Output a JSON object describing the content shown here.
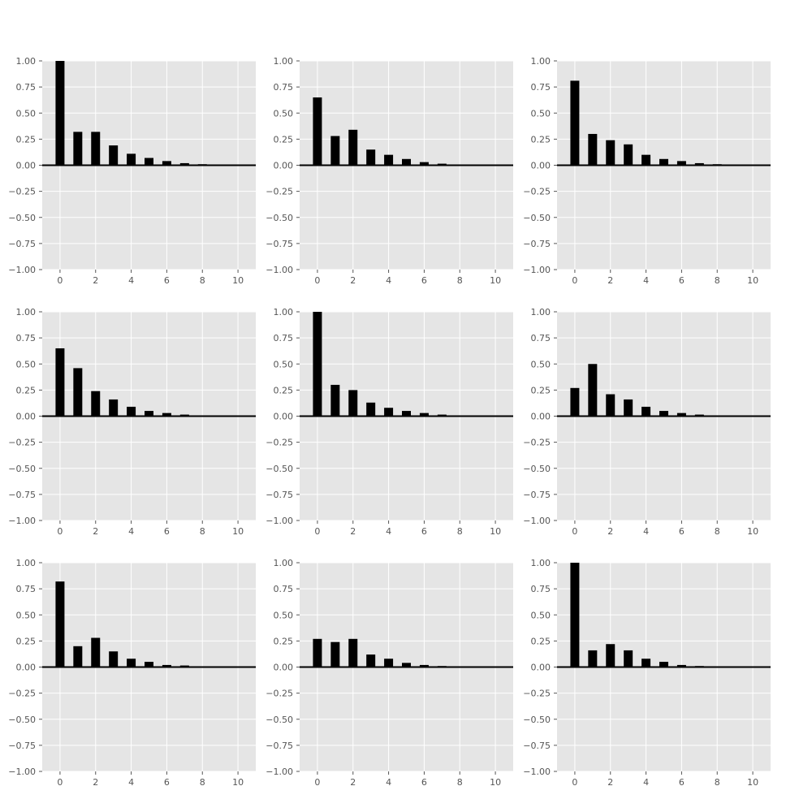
{
  "chart_data": [
    {
      "type": "bar",
      "x": [
        0,
        1,
        2,
        3,
        4,
        5,
        6,
        7,
        8,
        9,
        10
      ],
      "values": [
        1.0,
        0.32,
        0.32,
        0.19,
        0.11,
        0.07,
        0.04,
        0.02,
        0.01,
        0.005,
        0.0
      ],
      "xlim": [
        -1,
        11
      ],
      "ylim": [
        -1,
        1
      ],
      "xticks": [
        "0",
        "2",
        "4",
        "6",
        "8",
        "10"
      ],
      "yticks": [
        "1.00",
        "0.75",
        "0.50",
        "0.25",
        "0.00",
        "−0.25",
        "−0.50",
        "−0.75",
        "−1.00"
      ],
      "grid": true,
      "bar_color": "#000000",
      "background": "#e5e5e5"
    },
    {
      "type": "bar",
      "x": [
        0,
        1,
        2,
        3,
        4,
        5,
        6,
        7,
        8,
        9,
        10
      ],
      "values": [
        0.65,
        0.28,
        0.34,
        0.15,
        0.1,
        0.06,
        0.03,
        0.015,
        0.005,
        0.0,
        0.0
      ],
      "xlim": [
        -1,
        11
      ],
      "ylim": [
        -1,
        1
      ],
      "xticks": [
        "0",
        "2",
        "4",
        "6",
        "8",
        "10"
      ],
      "yticks": [
        "1.00",
        "0.75",
        "0.50",
        "0.25",
        "0.00",
        "−0.25",
        "−0.50",
        "−0.75",
        "−1.00"
      ],
      "grid": true,
      "bar_color": "#000000",
      "background": "#e5e5e5"
    },
    {
      "type": "bar",
      "x": [
        0,
        1,
        2,
        3,
        4,
        5,
        6,
        7,
        8,
        9,
        10
      ],
      "values": [
        0.81,
        0.3,
        0.24,
        0.2,
        0.1,
        0.06,
        0.04,
        0.02,
        0.01,
        0.005,
        0.0
      ],
      "xlim": [
        -1,
        11
      ],
      "ylim": [
        -1,
        1
      ],
      "xticks": [
        "0",
        "2",
        "4",
        "6",
        "8",
        "10"
      ],
      "yticks": [
        "1.00",
        "0.75",
        "0.50",
        "0.25",
        "0.00",
        "−0.25",
        "−0.50",
        "−0.75",
        "−1.00"
      ],
      "grid": true,
      "bar_color": "#000000",
      "background": "#e5e5e5"
    },
    {
      "type": "bar",
      "x": [
        0,
        1,
        2,
        3,
        4,
        5,
        6,
        7,
        8,
        9,
        10
      ],
      "values": [
        0.65,
        0.46,
        0.24,
        0.16,
        0.09,
        0.05,
        0.03,
        0.015,
        0.005,
        0.003,
        0.0
      ],
      "xlim": [
        -1,
        11
      ],
      "ylim": [
        -1,
        1
      ],
      "xticks": [
        "0",
        "2",
        "4",
        "6",
        "8",
        "10"
      ],
      "yticks": [
        "1.00",
        "0.75",
        "0.50",
        "0.25",
        "0.00",
        "−0.25",
        "−0.50",
        "−0.75",
        "−1.00"
      ],
      "grid": true,
      "bar_color": "#000000",
      "background": "#e5e5e5"
    },
    {
      "type": "bar",
      "x": [
        0,
        1,
        2,
        3,
        4,
        5,
        6,
        7,
        8,
        9,
        10
      ],
      "values": [
        1.0,
        0.3,
        0.25,
        0.13,
        0.08,
        0.05,
        0.03,
        0.015,
        0.005,
        0.0,
        0.0
      ],
      "xlim": [
        -1,
        11
      ],
      "ylim": [
        -1,
        1
      ],
      "xticks": [
        "0",
        "2",
        "4",
        "6",
        "8",
        "10"
      ],
      "yticks": [
        "1.00",
        "0.75",
        "0.50",
        "0.25",
        "0.00",
        "−0.25",
        "−0.50",
        "−0.75",
        "−1.00"
      ],
      "grid": true,
      "bar_color": "#000000",
      "background": "#e5e5e5"
    },
    {
      "type": "bar",
      "x": [
        0,
        1,
        2,
        3,
        4,
        5,
        6,
        7,
        8,
        9,
        10
      ],
      "values": [
        0.27,
        0.5,
        0.21,
        0.16,
        0.09,
        0.05,
        0.03,
        0.015,
        0.005,
        0.003,
        0.0
      ],
      "xlim": [
        -1,
        11
      ],
      "ylim": [
        -1,
        1
      ],
      "xticks": [
        "0",
        "2",
        "4",
        "6",
        "8",
        "10"
      ],
      "yticks": [
        "1.00",
        "0.75",
        "0.50",
        "0.25",
        "0.00",
        "−0.25",
        "−0.50",
        "−0.75",
        "−1.00"
      ],
      "grid": true,
      "bar_color": "#000000",
      "background": "#e5e5e5"
    },
    {
      "type": "bar",
      "x": [
        0,
        1,
        2,
        3,
        4,
        5,
        6,
        7,
        8,
        9,
        10
      ],
      "values": [
        0.82,
        0.2,
        0.28,
        0.15,
        0.08,
        0.05,
        0.02,
        0.015,
        0.0,
        0.0,
        0.0
      ],
      "xlim": [
        -1,
        11
      ],
      "ylim": [
        -1,
        1
      ],
      "xticks": [
        "0",
        "2",
        "4",
        "6",
        "8",
        "10"
      ],
      "yticks": [
        "1.00",
        "0.75",
        "0.50",
        "0.25",
        "0.00",
        "−0.25",
        "−0.50",
        "−0.75",
        "−1.00"
      ],
      "grid": true,
      "bar_color": "#000000",
      "background": "#e5e5e5"
    },
    {
      "type": "bar",
      "x": [
        0,
        1,
        2,
        3,
        4,
        5,
        6,
        7,
        8,
        9,
        10
      ],
      "values": [
        0.27,
        0.24,
        0.27,
        0.12,
        0.08,
        0.04,
        0.02,
        0.01,
        0.0,
        0.0,
        0.0
      ],
      "xlim": [
        -1,
        11
      ],
      "ylim": [
        -1,
        1
      ],
      "xticks": [
        "0",
        "2",
        "4",
        "6",
        "8",
        "10"
      ],
      "yticks": [
        "1.00",
        "0.75",
        "0.50",
        "0.25",
        "0.00",
        "−0.25",
        "−0.50",
        "−0.75",
        "−1.00"
      ],
      "grid": true,
      "bar_color": "#000000",
      "background": "#e5e5e5"
    },
    {
      "type": "bar",
      "x": [
        0,
        1,
        2,
        3,
        4,
        5,
        6,
        7,
        8,
        9,
        10
      ],
      "values": [
        1.0,
        0.16,
        0.22,
        0.16,
        0.08,
        0.05,
        0.02,
        0.01,
        0.0,
        0.0,
        0.0
      ],
      "xlim": [
        -1,
        11
      ],
      "ylim": [
        -1,
        1
      ],
      "xticks": [
        "0",
        "2",
        "4",
        "6",
        "8",
        "10"
      ],
      "yticks": [
        "1.00",
        "0.75",
        "0.50",
        "0.25",
        "0.00",
        "−0.25",
        "−0.50",
        "−0.75",
        "−1.00"
      ],
      "grid": true,
      "bar_color": "#000000",
      "background": "#e5e5e5"
    }
  ]
}
